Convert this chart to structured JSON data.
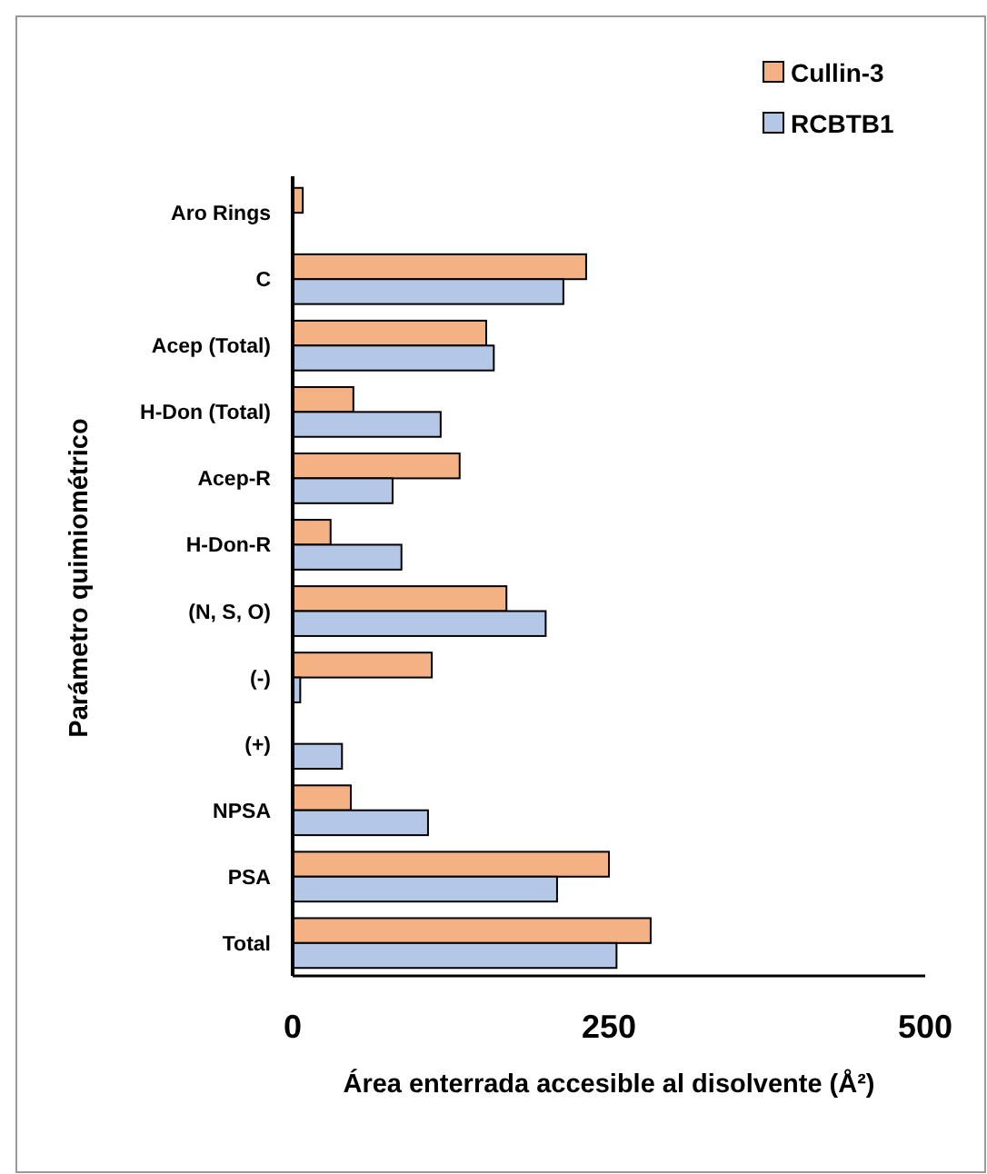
{
  "chart_data": {
    "type": "bar",
    "orientation": "horizontal",
    "xlabel": "Área enterrada accesible al disolvente (Å²)",
    "ylabel": "Parámetro quimiométrico",
    "categories": [
      "Aro Rings",
      "C",
      "Acep (Total)",
      "H-Don (Total)",
      "Acep-R",
      "H-Don-R",
      "(N, S, O)",
      "(-)",
      "(+)",
      "NPSA",
      "PSA",
      "Total"
    ],
    "series": [
      {
        "name": "Cullin-3",
        "color": "#f4b183",
        "values": [
          8,
          232,
          153,
          48,
          132,
          30,
          169,
          110,
          null,
          46,
          250,
          283
        ]
      },
      {
        "name": "RCBTB1",
        "color": "#b4c7e7",
        "values": [
          null,
          214,
          159,
          117,
          79,
          86,
          200,
          6,
          39,
          107,
          209,
          256
        ]
      }
    ],
    "xlim": [
      0,
      500
    ],
    "xticks": [
      0,
      250,
      500
    ],
    "legend": "top right",
    "grid": false
  }
}
